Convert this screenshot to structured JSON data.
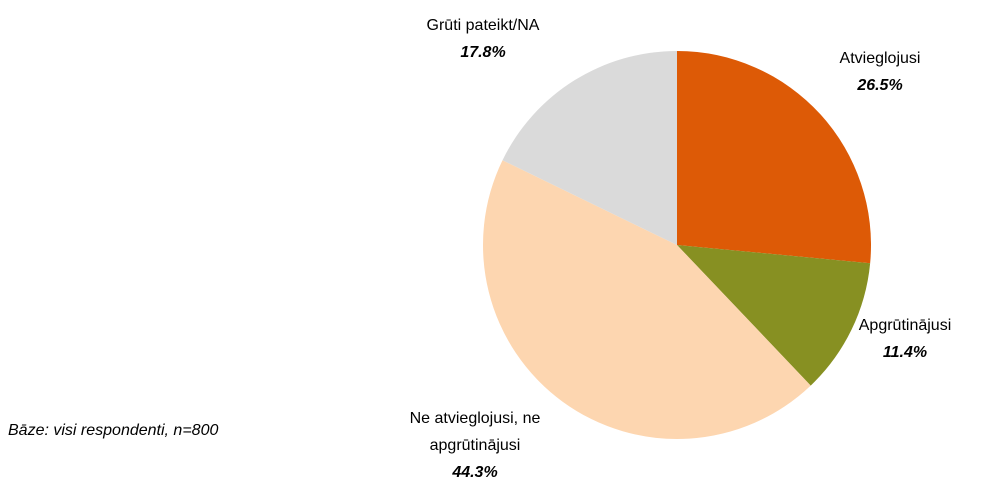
{
  "chart_data": {
    "type": "pie",
    "categories": [
      "Atvieglojusi",
      "Apgrūtinājusi",
      "Ne atvieglojusi, ne apgrūtinājusi",
      "Grūti pateikt/NA"
    ],
    "values": [
      26.5,
      11.4,
      44.3,
      17.8
    ],
    "value_labels": [
      "26.5%",
      "11.4%",
      "44.3%",
      "17.8%"
    ],
    "colors": [
      "#dd5a06",
      "#879022",
      "#fdd6b0",
      "#dadada"
    ],
    "footnote": "Bāze: visi respondenti, n=800"
  }
}
